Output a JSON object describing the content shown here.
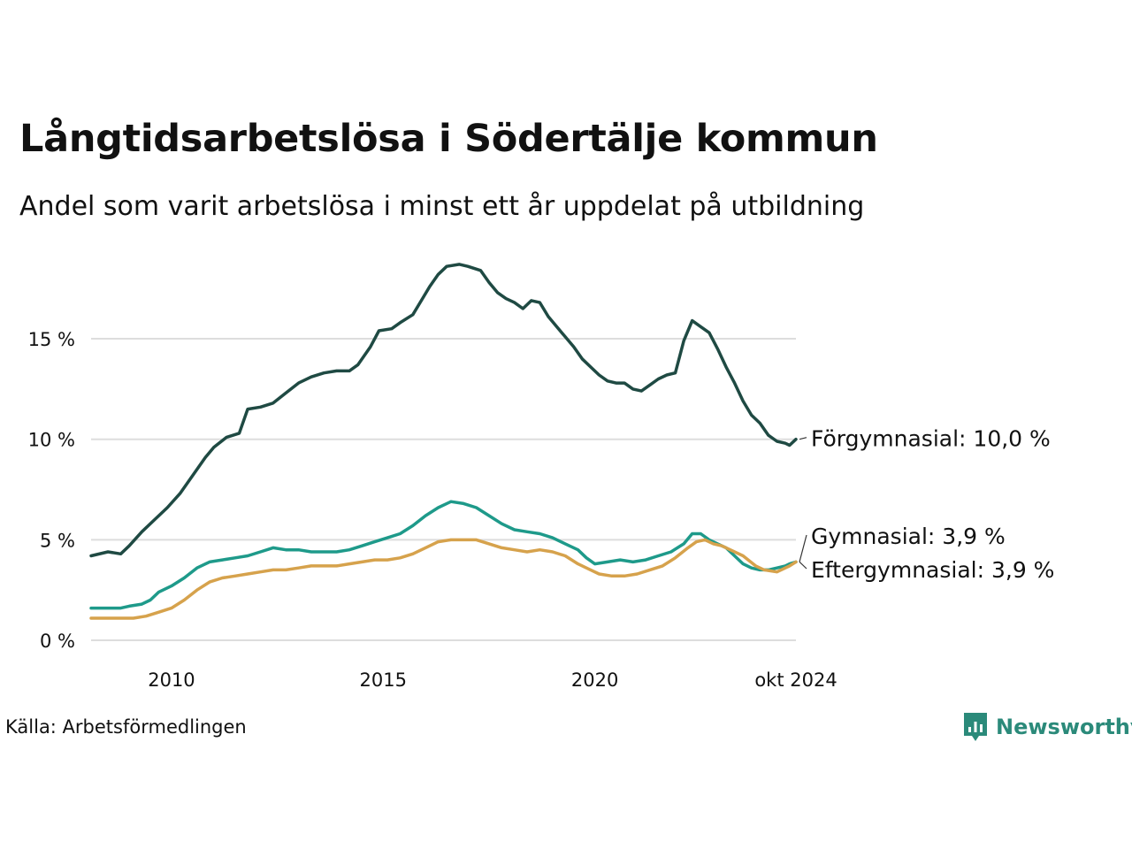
{
  "title": "Långtidsarbetslösa i Södertälje kommun",
  "subtitle": "Andel som varit arbetslösa i minst ett år uppdelat på utbildning",
  "source": "Källa: Arbetsförmedlingen",
  "brand": "Newsworthy",
  "colors": {
    "forgymnasial": "#1f4a43",
    "gymnasial": "#1e9a8a",
    "eftergymnasial": "#d6a24c",
    "grid": "#dddddd",
    "brand": "#2b8a7a"
  },
  "chart_data": {
    "type": "line",
    "title": "Långtidsarbetslösa i Södertälje kommun",
    "subtitle": "Andel som varit arbetslösa i minst ett år uppdelat på utbildning",
    "xlabel": "",
    "ylabel": "",
    "xlim": [
      2008.1,
      2024.75
    ],
    "ylim": [
      0,
      19
    ],
    "yticks": [
      0,
      5,
      10,
      15
    ],
    "ytick_labels": [
      "0 %",
      "5 %",
      "10 %",
      "15 %"
    ],
    "xticks": [
      2010,
      2015,
      2020,
      2024.75
    ],
    "xtick_labels": [
      "2010",
      "2015",
      "2020",
      "okt 2024"
    ],
    "grid": true,
    "series": [
      {
        "name": "Förgymnasial",
        "label": "Förgymnasial: 10,0 %",
        "last_value": 10.0,
        "color": "#1f4a43",
        "points": [
          [
            2008.1,
            4.2
          ],
          [
            2008.5,
            4.4
          ],
          [
            2008.8,
            4.3
          ],
          [
            2009.0,
            4.7
          ],
          [
            2009.3,
            5.4
          ],
          [
            2009.6,
            6.0
          ],
          [
            2009.9,
            6.6
          ],
          [
            2010.2,
            7.3
          ],
          [
            2010.5,
            8.2
          ],
          [
            2010.8,
            9.1
          ],
          [
            2011.0,
            9.6
          ],
          [
            2011.3,
            10.1
          ],
          [
            2011.6,
            10.3
          ],
          [
            2011.8,
            11.5
          ],
          [
            2012.1,
            11.6
          ],
          [
            2012.4,
            11.8
          ],
          [
            2012.7,
            12.3
          ],
          [
            2013.0,
            12.8
          ],
          [
            2013.3,
            13.1
          ],
          [
            2013.6,
            13.3
          ],
          [
            2013.9,
            13.4
          ],
          [
            2014.2,
            13.4
          ],
          [
            2014.4,
            13.7
          ],
          [
            2014.7,
            14.6
          ],
          [
            2014.9,
            15.4
          ],
          [
            2015.2,
            15.5
          ],
          [
            2015.4,
            15.8
          ],
          [
            2015.7,
            16.2
          ],
          [
            2015.9,
            16.9
          ],
          [
            2016.1,
            17.6
          ],
          [
            2016.3,
            18.2
          ],
          [
            2016.5,
            18.6
          ],
          [
            2016.8,
            18.7
          ],
          [
            2017.0,
            18.6
          ],
          [
            2017.3,
            18.4
          ],
          [
            2017.5,
            17.8
          ],
          [
            2017.7,
            17.3
          ],
          [
            2017.9,
            17.0
          ],
          [
            2018.1,
            16.8
          ],
          [
            2018.3,
            16.5
          ],
          [
            2018.5,
            16.9
          ],
          [
            2018.7,
            16.8
          ],
          [
            2018.9,
            16.1
          ],
          [
            2019.1,
            15.6
          ],
          [
            2019.3,
            15.1
          ],
          [
            2019.5,
            14.6
          ],
          [
            2019.7,
            14.0
          ],
          [
            2019.9,
            13.6
          ],
          [
            2020.1,
            13.2
          ],
          [
            2020.3,
            12.9
          ],
          [
            2020.5,
            12.8
          ],
          [
            2020.7,
            12.8
          ],
          [
            2020.9,
            12.5
          ],
          [
            2021.1,
            12.4
          ],
          [
            2021.3,
            12.7
          ],
          [
            2021.5,
            13.0
          ],
          [
            2021.7,
            13.2
          ],
          [
            2021.9,
            13.3
          ],
          [
            2022.1,
            14.9
          ],
          [
            2022.3,
            15.9
          ],
          [
            2022.5,
            15.6
          ],
          [
            2022.7,
            15.3
          ],
          [
            2022.9,
            14.5
          ],
          [
            2023.1,
            13.6
          ],
          [
            2023.3,
            12.8
          ],
          [
            2023.5,
            11.9
          ],
          [
            2023.7,
            11.2
          ],
          [
            2023.9,
            10.8
          ],
          [
            2024.1,
            10.2
          ],
          [
            2024.3,
            9.9
          ],
          [
            2024.5,
            9.8
          ],
          [
            2024.6,
            9.7
          ],
          [
            2024.75,
            10.0
          ]
        ]
      },
      {
        "name": "Gymnasial",
        "label": "Gymnasial:  3,9 %",
        "last_value": 3.9,
        "color": "#1e9a8a",
        "points": [
          [
            2008.1,
            1.6
          ],
          [
            2008.5,
            1.6
          ],
          [
            2008.8,
            1.6
          ],
          [
            2009.0,
            1.7
          ],
          [
            2009.3,
            1.8
          ],
          [
            2009.5,
            2.0
          ],
          [
            2009.7,
            2.4
          ],
          [
            2010.0,
            2.7
          ],
          [
            2010.3,
            3.1
          ],
          [
            2010.6,
            3.6
          ],
          [
            2010.9,
            3.9
          ],
          [
            2011.2,
            4.0
          ],
          [
            2011.5,
            4.1
          ],
          [
            2011.8,
            4.2
          ],
          [
            2012.1,
            4.4
          ],
          [
            2012.4,
            4.6
          ],
          [
            2012.7,
            4.5
          ],
          [
            2013.0,
            4.5
          ],
          [
            2013.3,
            4.4
          ],
          [
            2013.6,
            4.4
          ],
          [
            2013.9,
            4.4
          ],
          [
            2014.2,
            4.5
          ],
          [
            2014.5,
            4.7
          ],
          [
            2014.8,
            4.9
          ],
          [
            2015.1,
            5.1
          ],
          [
            2015.4,
            5.3
          ],
          [
            2015.7,
            5.7
          ],
          [
            2016.0,
            6.2
          ],
          [
            2016.3,
            6.6
          ],
          [
            2016.6,
            6.9
          ],
          [
            2016.9,
            6.8
          ],
          [
            2017.2,
            6.6
          ],
          [
            2017.5,
            6.2
          ],
          [
            2017.8,
            5.8
          ],
          [
            2018.1,
            5.5
          ],
          [
            2018.4,
            5.4
          ],
          [
            2018.7,
            5.3
          ],
          [
            2019.0,
            5.1
          ],
          [
            2019.3,
            4.8
          ],
          [
            2019.6,
            4.5
          ],
          [
            2019.8,
            4.1
          ],
          [
            2020.0,
            3.8
          ],
          [
            2020.3,
            3.9
          ],
          [
            2020.6,
            4.0
          ],
          [
            2020.9,
            3.9
          ],
          [
            2021.2,
            4.0
          ],
          [
            2021.5,
            4.2
          ],
          [
            2021.8,
            4.4
          ],
          [
            2022.1,
            4.8
          ],
          [
            2022.3,
            5.3
          ],
          [
            2022.5,
            5.3
          ],
          [
            2022.7,
            5.0
          ],
          [
            2022.9,
            4.8
          ],
          [
            2023.1,
            4.6
          ],
          [
            2023.3,
            4.2
          ],
          [
            2023.5,
            3.8
          ],
          [
            2023.7,
            3.6
          ],
          [
            2023.9,
            3.5
          ],
          [
            2024.1,
            3.5
          ],
          [
            2024.3,
            3.6
          ],
          [
            2024.5,
            3.7
          ],
          [
            2024.6,
            3.8
          ],
          [
            2024.75,
            3.9
          ]
        ]
      },
      {
        "name": "Eftergymnasial",
        "label": "Eftergymnasial:  3,9 %",
        "last_value": 3.9,
        "color": "#d6a24c",
        "points": [
          [
            2008.1,
            1.1
          ],
          [
            2008.5,
            1.1
          ],
          [
            2008.8,
            1.1
          ],
          [
            2009.1,
            1.1
          ],
          [
            2009.4,
            1.2
          ],
          [
            2009.7,
            1.4
          ],
          [
            2010.0,
            1.6
          ],
          [
            2010.3,
            2.0
          ],
          [
            2010.6,
            2.5
          ],
          [
            2010.9,
            2.9
          ],
          [
            2011.2,
            3.1
          ],
          [
            2011.5,
            3.2
          ],
          [
            2011.8,
            3.3
          ],
          [
            2012.1,
            3.4
          ],
          [
            2012.4,
            3.5
          ],
          [
            2012.7,
            3.5
          ],
          [
            2013.0,
            3.6
          ],
          [
            2013.3,
            3.7
          ],
          [
            2013.6,
            3.7
          ],
          [
            2013.9,
            3.7
          ],
          [
            2014.2,
            3.8
          ],
          [
            2014.5,
            3.9
          ],
          [
            2014.8,
            4.0
          ],
          [
            2015.1,
            4.0
          ],
          [
            2015.4,
            4.1
          ],
          [
            2015.7,
            4.3
          ],
          [
            2016.0,
            4.6
          ],
          [
            2016.3,
            4.9
          ],
          [
            2016.6,
            5.0
          ],
          [
            2016.9,
            5.0
          ],
          [
            2017.2,
            5.0
          ],
          [
            2017.5,
            4.8
          ],
          [
            2017.8,
            4.6
          ],
          [
            2018.1,
            4.5
          ],
          [
            2018.4,
            4.4
          ],
          [
            2018.7,
            4.5
          ],
          [
            2019.0,
            4.4
          ],
          [
            2019.3,
            4.2
          ],
          [
            2019.6,
            3.8
          ],
          [
            2019.9,
            3.5
          ],
          [
            2020.1,
            3.3
          ],
          [
            2020.4,
            3.2
          ],
          [
            2020.7,
            3.2
          ],
          [
            2021.0,
            3.3
          ],
          [
            2021.3,
            3.5
          ],
          [
            2021.6,
            3.7
          ],
          [
            2021.9,
            4.1
          ],
          [
            2022.2,
            4.6
          ],
          [
            2022.4,
            4.9
          ],
          [
            2022.6,
            5.0
          ],
          [
            2022.8,
            4.8
          ],
          [
            2023.0,
            4.7
          ],
          [
            2023.2,
            4.5
          ],
          [
            2023.5,
            4.2
          ],
          [
            2023.8,
            3.7
          ],
          [
            2024.0,
            3.5
          ],
          [
            2024.3,
            3.4
          ],
          [
            2024.5,
            3.6
          ],
          [
            2024.6,
            3.7
          ],
          [
            2024.75,
            3.9
          ]
        ]
      }
    ]
  }
}
